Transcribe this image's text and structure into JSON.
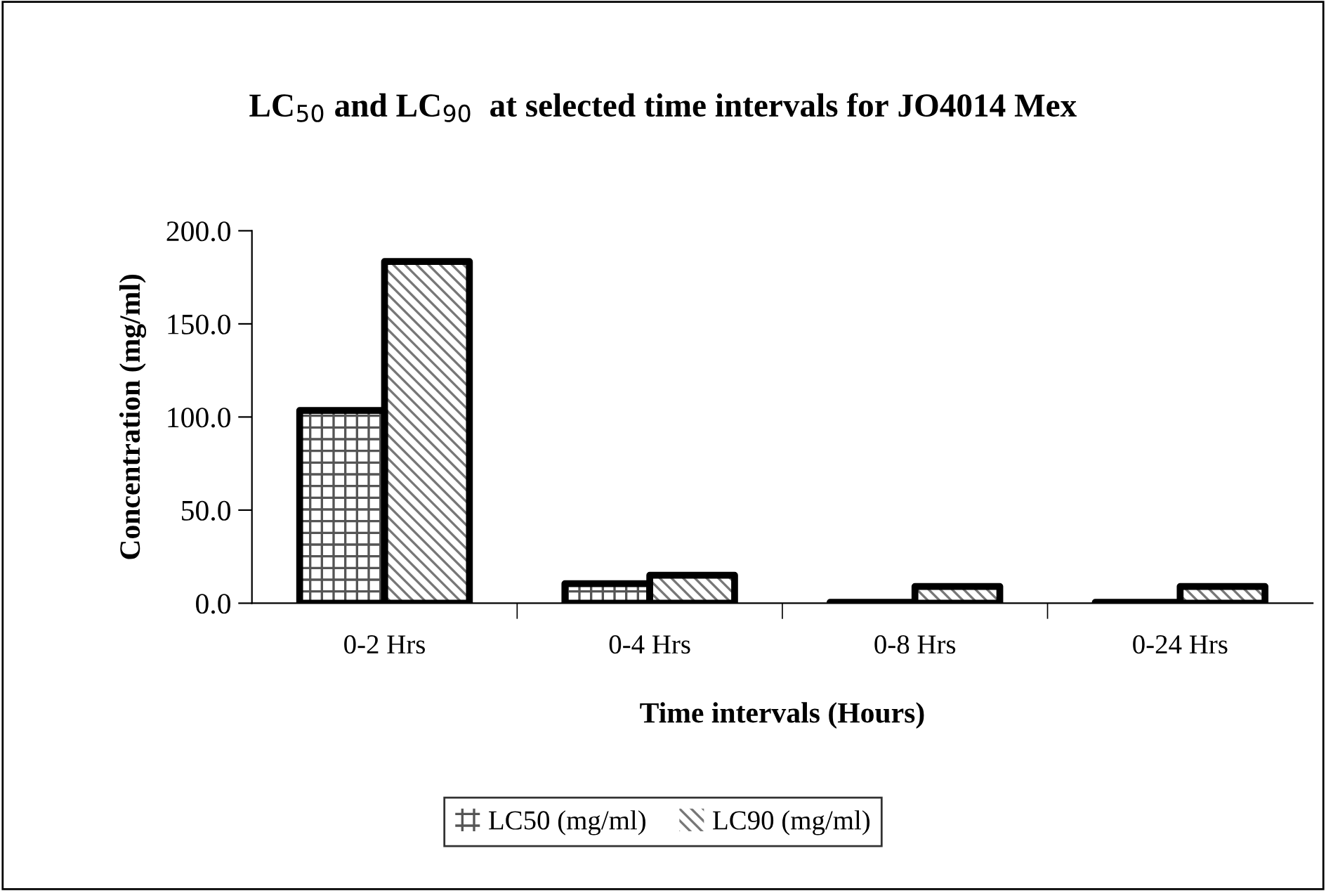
{
  "chart_data": {
    "type": "bar",
    "title": "LC$_{50}$ and LC$_{90}$  at selected time intervals for JO4014 Mex",
    "xlabel": "Time intervals (Hours)",
    "ylabel": "Concentration (mg/ml)",
    "categories": [
      "0-2 Hrs",
      "0-4 Hrs",
      "0-8 Hrs",
      "0-24 Hrs"
    ],
    "series": [
      {
        "name": "LC50 (mg/ml)",
        "color": "#ffffff",
        "values": [
          103.5,
          10.5,
          0.5,
          0.5
        ]
      },
      {
        "name": "LC90 (mg/ml)",
        "color": "#ffffff",
        "values": [
          183.5,
          15,
          9,
          9
        ]
      }
    ],
    "ylim": [
      0,
      200
    ],
    "yticks": [
      {
        "value": 0,
        "label": "0.0"
      },
      {
        "value": 50,
        "label": "50.0"
      },
      {
        "value": 100,
        "label": "100.0"
      },
      {
        "value": 150,
        "label": "150.0"
      },
      {
        "value": 200,
        "label": "200.0"
      }
    ],
    "grid": false,
    "legend": "bottom"
  }
}
